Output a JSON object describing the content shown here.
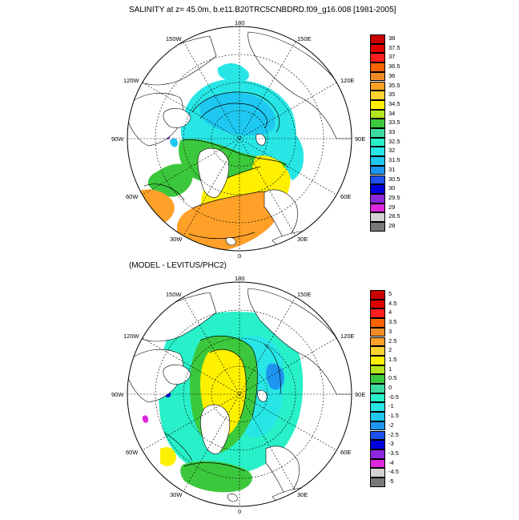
{
  "panels": [
    {
      "id": "salinity",
      "title": "SALINITY at z=  45.0m, b.e11.B20TRC5CNBDRD.f09_g16.008 [1981-2005]",
      "lon_labels": [
        "180",
        "150E",
        "120E",
        "90E",
        "60E",
        "30E",
        "0",
        "30W",
        "60W",
        "90W",
        "120W",
        "150W"
      ],
      "colorbar": {
        "labels": [
          "38",
          "37.5",
          "37",
          "36.5",
          "36",
          "35.5",
          "35",
          "34.5",
          "34",
          "33.5",
          "33",
          "32.5",
          "32",
          "31.5",
          "31",
          "30.5",
          "30",
          "29.5",
          "29",
          "28.5",
          "28"
        ],
        "colors": [
          "#c80000",
          "#e00000",
          "#ff1e1e",
          "#ff6400",
          "#f08c28",
          "#ffa028",
          "#ffd232",
          "#fff000",
          "#b4e61e",
          "#3cc83c",
          "#3cdca0",
          "#28f0c8",
          "#28e6e6",
          "#1ec8f0",
          "#1e96f0",
          "#1e50f0",
          "#0000dc",
          "#8c28dc",
          "#dc28dc",
          "#d2d2d2",
          "#787878"
        ]
      }
    },
    {
      "id": "difference",
      "title": "(MODEL - LEVITUS/PHC2)",
      "lon_labels": [
        "180",
        "150E",
        "120E",
        "90E",
        "60E",
        "30E",
        "0",
        "30W",
        "60W",
        "90W",
        "120W",
        "150W"
      ],
      "colorbar": {
        "labels": [
          "5",
          "4.5",
          "4",
          "3.5",
          "3",
          "2.5",
          "2",
          "1.5",
          "1",
          "0.5",
          "0",
          "-0.5",
          "-1",
          "-1.5",
          "-2",
          "-2.5",
          "-3",
          "-3.5",
          "-4",
          "-4.5",
          "-5"
        ],
        "colors": [
          "#c80000",
          "#e00000",
          "#ff1e1e",
          "#ff6400",
          "#f08c28",
          "#ffa028",
          "#ffd232",
          "#fff000",
          "#b4e61e",
          "#3cc83c",
          "#3cdca0",
          "#28f0c8",
          "#28e6e6",
          "#1ec8f0",
          "#1e96f0",
          "#1e50f0",
          "#0000dc",
          "#8c28dc",
          "#dc28dc",
          "#d2d2d2",
          "#787878"
        ]
      }
    }
  ]
}
